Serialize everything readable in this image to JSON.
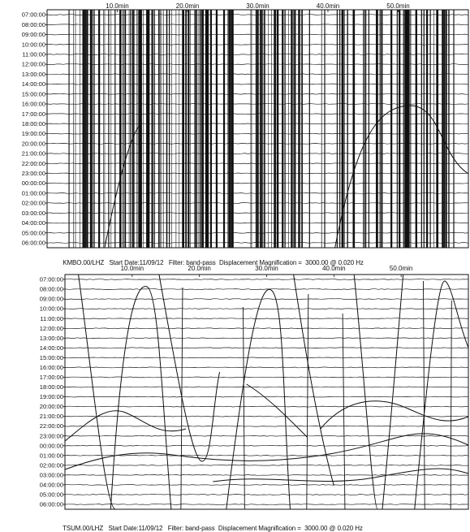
{
  "charts": [
    {
      "station": "KMBO.00/LHZ",
      "start_date": "Start Date:11/09/12",
      "filter": "Filter: band-pass",
      "magnification": "Displacement Magnification =  3000.00 @ 0.020 Hz",
      "x_ticks": [
        "10.0min",
        "20.0min",
        "30.0min",
        "40.0min",
        "50.0min"
      ],
      "y_ticks": [
        "07:00:00",
        "08:00:00",
        "09:00:00",
        "10:00:00",
        "11:00:00",
        "12:00:00",
        "13:00:00",
        "14:00:00",
        "15:00:00",
        "16:00:00",
        "17:00:00",
        "18:00:00",
        "19:00:00",
        "20:00:00",
        "21:00:00",
        "22:00:00",
        "23:00:00",
        "00:00:00",
        "01:00:00",
        "02:00:00",
        "03:00:00",
        "04:00:00",
        "05:00:00",
        "06:00:00"
      ]
    },
    {
      "station": "TSUM.00/LHZ",
      "start_date": "Start Date:11/09/12",
      "filter": "Filter: band-pass",
      "magnification": "Displacement Magnification =  3000.00 @ 0.020 Hz",
      "x_ticks": [
        "10.0min",
        "20.0min",
        "30.0min",
        "40.0min",
        "50.0min"
      ],
      "y_ticks": [
        "07:00:00",
        "08:00:00",
        "09:00:00",
        "10:00:00",
        "11:00:00",
        "12:00:00",
        "13:00:00",
        "14:00:00",
        "15:00:00",
        "16:00:00",
        "17:00:00",
        "18:00:00",
        "19:00:00",
        "20:00:00",
        "21:00:00",
        "22:00:00",
        "23:00:00",
        "00:00:00",
        "01:00:00",
        "02:00:00",
        "03:00:00",
        "04:00:00",
        "05:00:00",
        "06:00:00"
      ]
    }
  ],
  "chart_data": [
    {
      "type": "line",
      "title": "",
      "xlabel": "",
      "ylabel": "",
      "x_unit": "min",
      "x_ticks": [
        10,
        20,
        30,
        40,
        50
      ],
      "xlim": [
        0,
        60
      ],
      "y_categories": [
        "07:00:00",
        "08:00:00",
        "09:00:00",
        "10:00:00",
        "11:00:00",
        "12:00:00",
        "13:00:00",
        "14:00:00",
        "15:00:00",
        "16:00:00",
        "17:00:00",
        "18:00:00",
        "19:00:00",
        "20:00:00",
        "21:00:00",
        "22:00:00",
        "23:00:00",
        "00:00:00",
        "01:00:00",
        "02:00:00",
        "03:00:00",
        "04:00:00",
        "05:00:00",
        "06:00:00"
      ],
      "grid": false,
      "legend": "none"
    },
    {
      "type": "line",
      "title": "",
      "xlabel": "",
      "ylabel": "",
      "x_unit": "min",
      "x_ticks": [
        10,
        20,
        30,
        40,
        50
      ],
      "xlim": [
        0,
        60
      ],
      "y_categories": [
        "07:00:00",
        "08:00:00",
        "09:00:00",
        "10:00:00",
        "11:00:00",
        "12:00:00",
        "13:00:00",
        "14:00:00",
        "15:00:00",
        "16:00:00",
        "17:00:00",
        "18:00:00",
        "19:00:00",
        "20:00:00",
        "21:00:00",
        "22:00:00",
        "23:00:00",
        "00:00:00",
        "01:00:00",
        "02:00:00",
        "03:00:00",
        "04:00:00",
        "05:00:00",
        "06:00:00"
      ],
      "grid": false,
      "legend": "none"
    }
  ]
}
